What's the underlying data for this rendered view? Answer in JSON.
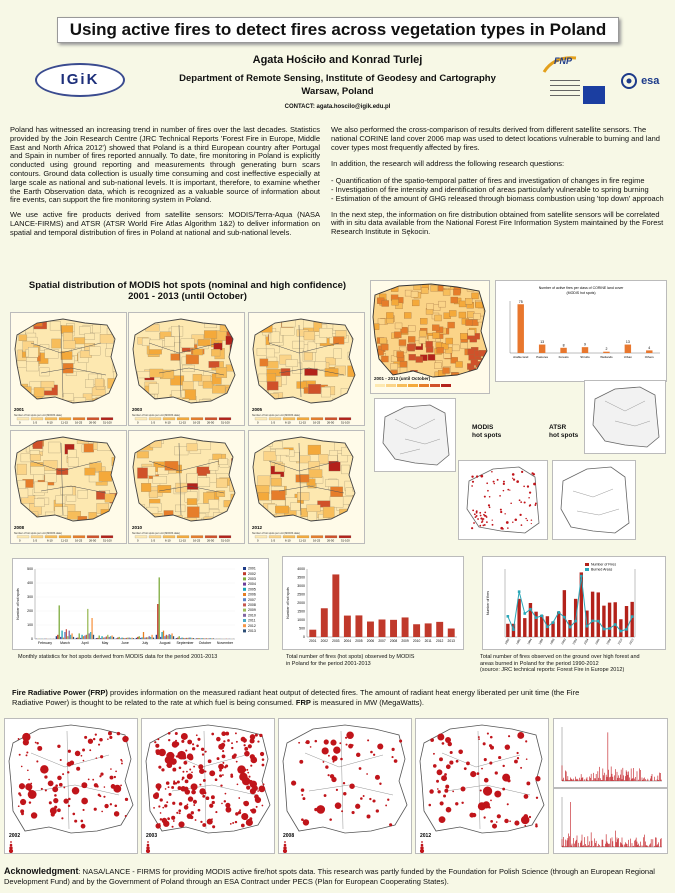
{
  "header": {
    "title": "Using active fires to detect fires across vegetation types in Poland",
    "authors": "Agata Hościło and Konrad Turlej",
    "affiliation_line1": "Department of Remote Sensing, Institute of Geodesy and Cartography",
    "affiliation_line2": "Warsaw, Poland",
    "contact": "CONTACT: agata.hoscilo@igik.edu.pl",
    "logo_left": "IGiK",
    "logo_fnp": "FNP",
    "logo_esa": "esa"
  },
  "intro": {
    "left_p1": "Poland has witnessed an increasing trend in number of fires over the last decades. Statistics provided by the Join Research Centre (JRC Technical Reports 'Forest Fire in Europe, Middle East and North Africa 2012') showed that Poland is a third European country after Portugal and Spain in number of fires reported annually. To date, fire monitoring in Poland is explicitly conducted using ground reporting and measurements through generating burn scars contours. Ground data collection is usually time consuming and cost ineffective especially at large scale as national and sub-national levels. It is important, therefore, to examine whether the Earth Observation data, which is recognized as a valuable source of information about fire events, can support the fire monitoring system in Poland.",
    "left_p2": "We use active fire products derived from satellite sensors: MODIS/Terra-Aqua (NASA LANCE-FIRMS) and ATSR (ATSR World Fire Atlas Algorithm 1&2) to deliver information on spatial and temporal distribution of fires in Poland at national and sub-national levels.",
    "right_p1": "We also performed the cross-comparison of results derived from different satellite sensors. The national CORINE land cover 2006 map was used to detect locations vulnerable to burning and land cover types most frequently affected by fires.",
    "right_p2": "In addition, the research will address the following research questions:",
    "bullets": [
      "- Quantification of the spatio-temporal patter of fires and investigation of changes in fire regime",
      "- Investigation of fire intensity and identification of areas particularly vulnerable to spring burning",
      "- Estimation of the amount of GHG released through biomass combustion using 'top down' approach"
    ],
    "right_p3": "In the next step, the information on fire distribution obtained from satellite sensors will be correlated with in situ data available from the National Forest Fire Information System maintained by the Forest Research Institute in Sękocin."
  },
  "spatial": {
    "heading_line1": "Spatial distribution of MODIS hot spots (nominal and high confidence)",
    "heading_line2": "2001 - 2013 (until October)",
    "map_years": [
      "2001",
      "2003",
      "2005",
      "2008",
      "2010",
      "2012"
    ],
    "legend_caption": "Number of hot spots per unit (MODIS data)",
    "legend_values": [
      "0",
      "1-5",
      "6-10",
      "11-15",
      "16-25",
      "26-50",
      "51-100"
    ],
    "big_map_caption": "2001 - 2013 (until October)",
    "modis_label_1": "MODIS",
    "modis_label_2": "hot spots",
    "atsr_label_1": "ATSR",
    "atsr_label_2": "hot spots"
  },
  "captions": {
    "monthly": "Monthly statistics for hot spots derived from MODIS data for the period 2001-2013",
    "total_line1": "Total number of fires (hot spots) observed by MODIS",
    "total_line2": "in Poland for the period 2001-2013",
    "ground_line1": "Total number of fires observed on the ground over high forest and",
    "ground_line2": "areas burned in Poland for the period 1990-2012",
    "ground_line3": "(source: JRC technical reports: Forest Fire in Europe 2012)"
  },
  "chart_data": [
    {
      "type": "bar",
      "title": "",
      "ylabel": "Number of hot spots",
      "categories": [
        "February",
        "March",
        "April",
        "May",
        "June",
        "July",
        "August",
        "September",
        "October",
        "November"
      ],
      "ylim": [
        0,
        500
      ],
      "series": [
        {
          "name": "2001",
          "values": [
            2,
            20,
            8,
            6,
            4,
            8,
            30,
            6,
            4,
            1
          ]
        },
        {
          "name": "2002",
          "values": [
            1,
            30,
            10,
            8,
            10,
            15,
            250,
            10,
            5,
            1
          ]
        },
        {
          "name": "2003",
          "values": [
            2,
            240,
            40,
            25,
            15,
            20,
            440,
            20,
            6,
            2
          ]
        },
        {
          "name": "2004",
          "values": [
            1,
            15,
            8,
            6,
            4,
            8,
            15,
            5,
            3,
            1
          ]
        },
        {
          "name": "2005",
          "values": [
            2,
            60,
            30,
            20,
            10,
            12,
            50,
            10,
            6,
            1
          ]
        },
        {
          "name": "2006",
          "values": [
            1,
            10,
            20,
            10,
            8,
            50,
            60,
            8,
            5,
            1
          ]
        },
        {
          "name": "2007",
          "values": [
            3,
            50,
            25,
            12,
            6,
            10,
            20,
            6,
            4,
            1
          ]
        },
        {
          "name": "2008",
          "values": [
            2,
            70,
            30,
            18,
            8,
            12,
            30,
            8,
            5,
            2
          ]
        },
        {
          "name": "2009",
          "values": [
            1,
            20,
            215,
            30,
            10,
            12,
            25,
            8,
            4,
            1
          ]
        },
        {
          "name": "2010",
          "values": [
            1,
            60,
            40,
            15,
            10,
            20,
            35,
            10,
            5,
            2
          ]
        },
        {
          "name": "2011",
          "values": [
            2,
            30,
            50,
            20,
            8,
            15,
            30,
            10,
            6,
            1
          ]
        },
        {
          "name": "2012",
          "values": [
            1,
            40,
            150,
            25,
            10,
            30,
            40,
            8,
            5,
            1
          ]
        },
        {
          "name": "2013",
          "values": [
            1,
            15,
            30,
            15,
            6,
            10,
            20,
            6,
            4,
            1
          ]
        }
      ]
    },
    {
      "type": "bar",
      "title": "",
      "ylabel": "Number of hot spots",
      "categories": [
        "2001",
        "2002",
        "2003",
        "2004",
        "2005",
        "2006",
        "2007",
        "2008",
        "2009",
        "2010",
        "2011",
        "2012",
        "2013"
      ],
      "ylim": [
        0,
        4000
      ],
      "yticks": [
        "0",
        "500",
        "1000",
        "1500",
        "2000",
        "2500",
        "3000",
        "3500",
        "4000"
      ],
      "values": [
        430,
        1690,
        3680,
        1260,
        1270,
        910,
        1030,
        1010,
        1150,
        750,
        800,
        890,
        500
      ]
    },
    {
      "type": "bar",
      "title": "",
      "ylabel": "Number of fires",
      "categories": [
        "1990",
        "1991",
        "1992",
        "1993",
        "1994",
        "1995",
        "1996",
        "1997",
        "1998",
        "1999",
        "2000",
        "2001",
        "2002",
        "2003",
        "2004",
        "2005",
        "2006",
        "2007",
        "2008",
        "2009",
        "2010",
        "2011",
        "2012"
      ],
      "series": [
        {
          "name": "Number of Fires",
          "values": [
            3500,
            3500,
            10100,
            5000,
            9000,
            6700,
            5800,
            5500,
            4100,
            6700,
            12400,
            4500,
            10100,
            17100,
            7000,
            12000,
            11800,
            8300,
            9100,
            9200,
            4700,
            8200,
            9300
          ]
        },
        {
          "name": "Burned Areas",
          "values": [
            7300,
            2600,
            16000,
            8300,
            9800,
            6800,
            7500,
            3600,
            5100,
            8700,
            7000,
            3500,
            5600,
            21500,
            3800,
            5700,
            5600,
            2800,
            3000,
            4400,
            2100,
            2700,
            7200
          ]
        }
      ]
    }
  ],
  "bar_chart_small": {
    "title_line1": "Number of active fires per class of CORINE land cover",
    "title_line2": "(MODIS hot spots)",
    "categories": [
      "Arable land",
      "Pastures",
      "Forests",
      "Shrubs",
      "Wetlands",
      "Urban",
      "Others"
    ],
    "values": [
      75,
      13,
      8,
      9,
      2,
      13,
      4
    ]
  },
  "frp": {
    "text_title": "Fire Radiative Power (FRP)",
    "text_body": " provides information on the measured radiant heat output of detected fires. The amount of radiant heat energy liberated per unit time (the Fire Radiative Power) is thought to be related to the rate at which fuel is being consumed. ",
    "text_frp": "FRP",
    "text_end": " is measured in MW (MegaWatts).",
    "map_years": [
      "2002",
      "2003",
      "2008",
      "2012"
    ]
  },
  "acknowledgment": {
    "label": "Acknowledgment",
    "text": ": NASA/LANCE - FIRMS for providing MODIS active fire/hot spots data. This research was partly funded by the Foundation for Polish Science (through an European Regional Development Fund) and by the Government of Poland through an ESA Contract under PECS (Plan for European Cooperating States)."
  },
  "colors": {
    "background": "#f7f8e6",
    "map_low": "#fde8b0",
    "map_mid": "#f4a93a",
    "map_high": "#b3221a",
    "hotspot_red": "#c0141a",
    "bar_orange": "#e8772e"
  }
}
